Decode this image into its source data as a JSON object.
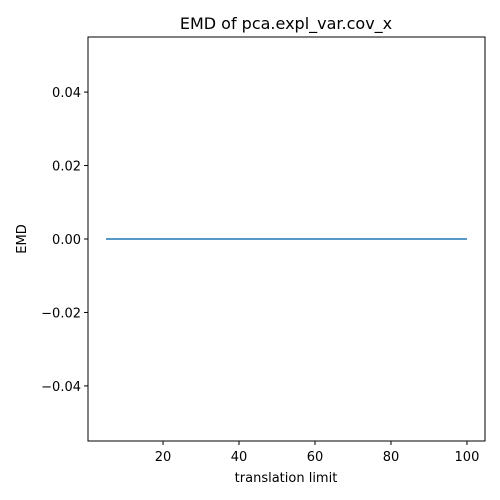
{
  "chart_data": {
    "type": "line",
    "title": "EMD of pca.expl_var.cov_x",
    "xlabel": "translation limit",
    "ylabel": "EMD",
    "xlim": [
      0.25,
      104.75
    ],
    "ylim": [
      -0.055,
      0.055
    ],
    "xticks": [
      20,
      40,
      60,
      80,
      100
    ],
    "xtick_labels": [
      "20",
      "40",
      "60",
      "80",
      "100"
    ],
    "yticks": [
      -0.04,
      -0.02,
      0.0,
      0.02,
      0.04
    ],
    "ytick_labels": [
      "−0.04",
      "−0.02",
      "0.00",
      "0.02",
      "0.04"
    ],
    "grid": false,
    "series": [
      {
        "color": "#1f77b4",
        "x": [
          5,
          100
        ],
        "y": [
          0.0,
          0.0
        ]
      }
    ]
  }
}
